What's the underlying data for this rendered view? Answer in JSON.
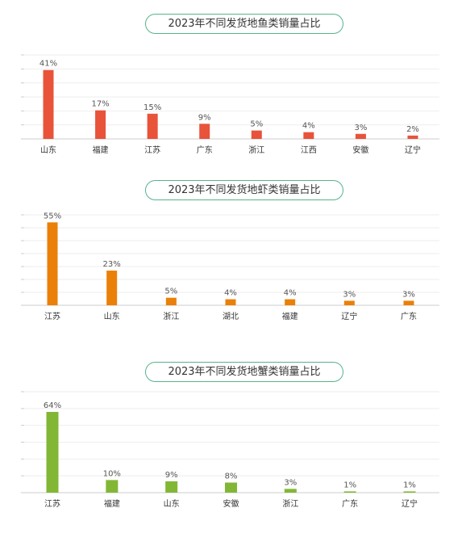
{
  "chart_data": [
    {
      "type": "bar",
      "title": "2023年不同发货地鱼类销量占比",
      "categories": [
        "山东",
        "福建",
        "江苏",
        "广东",
        "浙江",
        "江西",
        "安徽",
        "辽宁"
      ],
      "values": [
        41,
        17,
        15,
        9,
        5,
        4,
        3,
        2
      ],
      "value_labels": [
        "41%",
        "17%",
        "15%",
        "9%",
        "5%",
        "4%",
        "3%",
        "2%"
      ],
      "ylim": [
        0,
        50
      ],
      "color": "#e8533a",
      "grid": true
    },
    {
      "type": "bar",
      "title": "2023年不同发货地虾类销量占比",
      "categories": [
        "江苏",
        "山东",
        "浙江",
        "湖北",
        "福建",
        "辽宁",
        "广东"
      ],
      "values": [
        55,
        23,
        5,
        4,
        4,
        3,
        3
      ],
      "value_labels": [
        "55%",
        "23%",
        "5%",
        "4%",
        "4%",
        "3%",
        "3%"
      ],
      "ylim": [
        0,
        60
      ],
      "color": "#ea8008",
      "grid": true
    },
    {
      "type": "bar",
      "title": "2023年不同发货地蟹类销量占比",
      "categories": [
        "江苏",
        "福建",
        "山东",
        "安徽",
        "浙江",
        "广东",
        "辽宁"
      ],
      "values": [
        64,
        10,
        9,
        8,
        3,
        1,
        1
      ],
      "value_labels": [
        "64%",
        "10%",
        "9%",
        "8%",
        "3%",
        "1%",
        "1%"
      ],
      "ylim": [
        0,
        80
      ],
      "color": "#82b735",
      "grid": true
    }
  ]
}
